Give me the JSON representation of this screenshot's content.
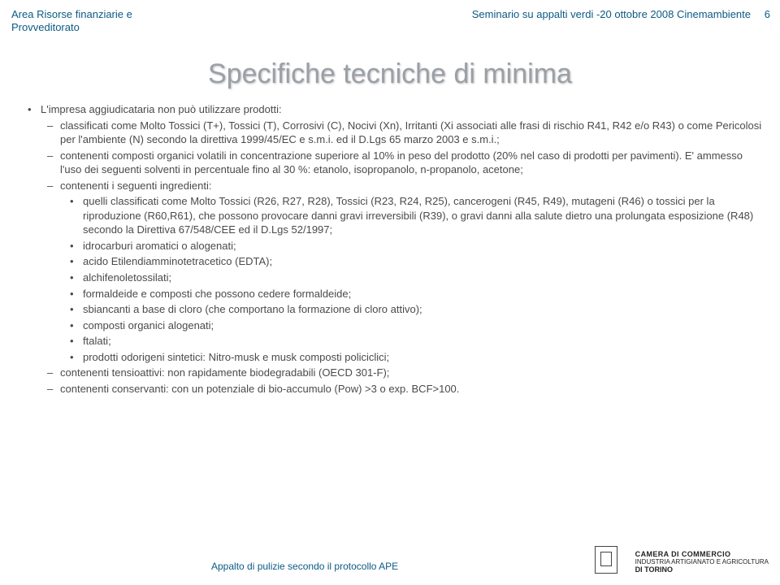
{
  "header": {
    "dept_line1": "Area Risorse finanziarie e",
    "dept_line2": "Provveditorato",
    "seminar": "Seminario su appalti verdi -20 ottobre 2008 Cinemambiente",
    "page_number": "6"
  },
  "title": "Specifiche tecniche di minima",
  "content": {
    "p1": "L'impresa aggiudicataria non può utilizzare prodotti:",
    "p2": "classificati come Molto Tossici (T+), Tossici (T), Corrosivi (C), Nocivi (Xn), Irritanti (Xi associati alle frasi di rischio R41, R42 e/o R43) o come Pericolosi per l'ambiente (N) secondo la direttiva 1999/45/EC e s.m.i. ed il D.Lgs 65 marzo 2003 e s.m.i.;",
    "p3": "contenenti composti organici volatili in concentrazione superiore al 10% in peso del prodotto (20% nel caso di prodotti per pavimenti). E' ammesso l'uso dei seguenti solventi in percentuale fino al 30 %: etanolo, isopropanolo, n-propanolo, acetone;",
    "p4": "contenenti i seguenti ingredienti:",
    "p4a": "quelli classificati come Molto Tossici (R26, R27, R28), Tossici (R23, R24, R25), cancerogeni (R45, R49), mutageni (R46) o tossici per la riproduzione (R60,R61), che possono provocare danni gravi irreversibili (R39), o gravi danni alla salute dietro una prolungata esposizione (R48) secondo la Direttiva 67/548/CEE ed il D.Lgs 52/1997;",
    "p4b": "idrocarburi aromatici o alogenati;",
    "p4c": "acido Etilendiamminotetracetico (EDTA);",
    "p4d": "alchifenoletossilati;",
    "p4e": "formaldeide e composti che possono cedere formaldeide;",
    "p4f": "sbiancanti a base di cloro (che comportano la formazione di cloro attivo);",
    "p4g": "composti organici alogenati;",
    "p4h": "ftalati;",
    "p4i": "prodotti odorigeni sintetici: Nitro-musk e musk composti policiclici;",
    "p5": "contenenti tensioattivi: non rapidamente biodegradabili (OECD 301-F);",
    "p6": "contenenti conservanti: con un potenziale di bio-accumulo (Pow) >3 o exp. BCF>100."
  },
  "footer": {
    "protocol": "Appalto di pulizie secondo il protocollo APE",
    "chamber_l1": "CAMERA DI COMMERCIO",
    "chamber_l2": "INDUSTRIA ARTIGIANATO E AGRICOLTURA",
    "chamber_l3": "DI TORINO"
  }
}
